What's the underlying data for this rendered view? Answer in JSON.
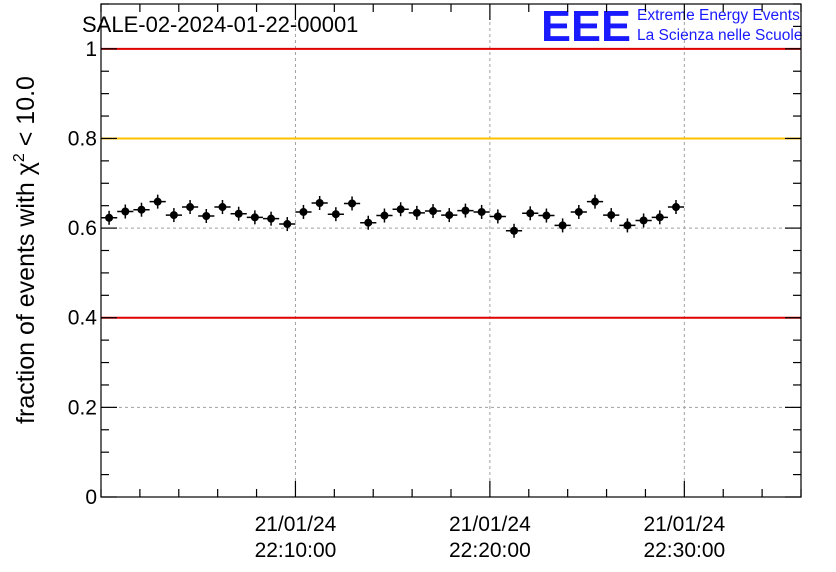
{
  "chart_data": {
    "type": "scatter",
    "title": "SALE-02-2024-01-22-00001",
    "ylabel_prefix": "fraction of events with χ",
    "ylabel_sup": "2",
    "ylabel_suffix": " < 10.0",
    "logo": {
      "letters": "EEE",
      "line1": "Extreme Energy Events",
      "line2": "La Scienza nelle Scuole"
    },
    "ylim": [
      0,
      1.1
    ],
    "yticks": [
      {
        "value": 0,
        "label": "0"
      },
      {
        "value": 0.2,
        "label": "0.2"
      },
      {
        "value": 0.4,
        "label": "0.4"
      },
      {
        "value": 0.6,
        "label": "0.6"
      },
      {
        "value": 0.8,
        "label": "0.8"
      },
      {
        "value": 1,
        "label": "1"
      }
    ],
    "xlim_minutes": [
      0,
      36
    ],
    "xticks": [
      {
        "minute": 10,
        "line1": "21/01/24",
        "line2": "22:10:00"
      },
      {
        "minute": 20,
        "line1": "21/01/24",
        "line2": "22:20:00"
      },
      {
        "minute": 30,
        "line1": "21/01/24",
        "line2": "22:30:00"
      }
    ],
    "grid": true,
    "reference_lines": [
      {
        "value": 1.0,
        "color": "#e00000"
      },
      {
        "value": 0.8,
        "color": "#ffc000"
      },
      {
        "value": 0.4,
        "color": "#e00000"
      }
    ],
    "point_color": "#000000",
    "bin_width_minutes": 0.833,
    "series": [
      {
        "values": [
          0.623,
          0.637,
          0.641,
          0.659,
          0.629,
          0.647,
          0.627,
          0.647,
          0.632,
          0.624,
          0.621,
          0.609,
          0.636,
          0.656,
          0.631,
          0.655,
          0.612,
          0.628,
          0.642,
          0.634,
          0.638,
          0.629,
          0.639,
          0.636,
          0.626,
          0.594,
          0.633,
          0.628,
          0.606,
          0.636,
          0.659,
          0.629,
          0.606,
          0.617,
          0.624,
          0.647
        ]
      }
    ]
  }
}
